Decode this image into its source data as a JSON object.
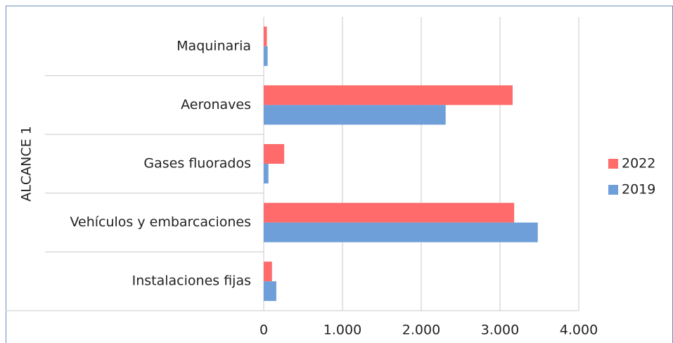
{
  "chart_data": {
    "type": "bar",
    "orientation": "horizontal",
    "group_label": "ALCANCE 1",
    "categories": [
      "Maquinaria",
      "Aeronaves",
      "Gases fluorados",
      "Vehículos y embarcaciones",
      "Instalaciones fijas"
    ],
    "series": [
      {
        "name": "2022",
        "color": "#ff6b6b",
        "values": [
          40,
          3160,
          260,
          3180,
          105
        ]
      },
      {
        "name": "2019",
        "color": "#6f9fd8",
        "values": [
          50,
          2310,
          60,
          3480,
          160
        ]
      }
    ],
    "xlim": [
      0,
      4000
    ],
    "xticks": [
      0,
      {
        "value": 1000,
        "label": "1.000"
      },
      {
        "value": 2000,
        "label": "2.000"
      },
      {
        "value": 3000,
        "label": "3.000"
      },
      {
        "value": 4000,
        "label": "4.000"
      }
    ],
    "grid": true,
    "legend": "right"
  }
}
